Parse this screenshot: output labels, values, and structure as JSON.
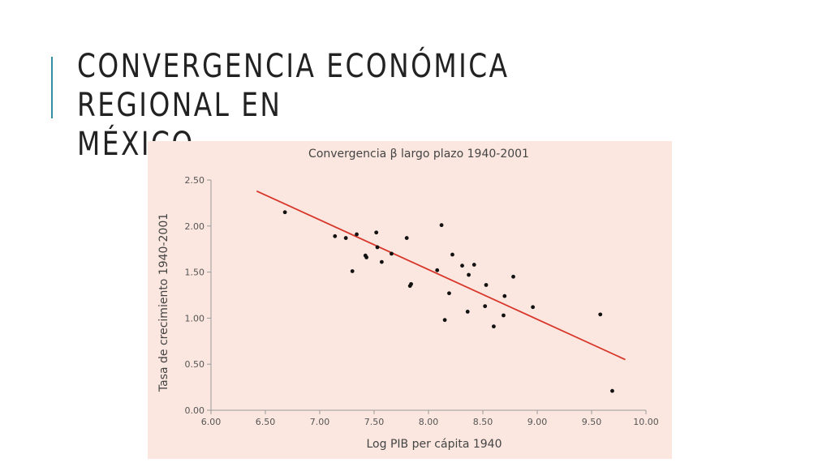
{
  "slide": {
    "title_line1": "CONVERGENCIA ECONÓMICA REGIONAL EN",
    "title_line2": "MÉXICO",
    "accent_color": "#2e8fa0"
  },
  "chart_data": {
    "type": "scatter",
    "title": "Convergencia β largo plazo 1940-2001",
    "xlabel": "Log PIB per cápita 1940",
    "ylabel": "Tasa de crecimiento 1940-2001",
    "xlim": [
      6.0,
      10.0
    ],
    "ylim": [
      0.0,
      2.5
    ],
    "x_ticks": [
      "6.00",
      "6.50",
      "7.00",
      "7.50",
      "8.00",
      "8.50",
      "9.00",
      "9.50",
      "10.00"
    ],
    "y_ticks": [
      "0.00",
      "0.50",
      "1.00",
      "1.50",
      "2.00",
      "2.50"
    ],
    "grid": false,
    "legend": "none",
    "background_color": "#fbe7df",
    "point_color": "#111111",
    "trend_color": "#d8362b",
    "points": [
      {
        "x": 6.68,
        "y": 2.15
      },
      {
        "x": 7.14,
        "y": 1.89
      },
      {
        "x": 7.24,
        "y": 1.87
      },
      {
        "x": 7.3,
        "y": 1.51
      },
      {
        "x": 7.34,
        "y": 1.91
      },
      {
        "x": 7.42,
        "y": 1.68
      },
      {
        "x": 7.43,
        "y": 1.66
      },
      {
        "x": 7.52,
        "y": 1.93
      },
      {
        "x": 7.53,
        "y": 1.77
      },
      {
        "x": 7.57,
        "y": 1.61
      },
      {
        "x": 7.66,
        "y": 1.7
      },
      {
        "x": 7.8,
        "y": 1.87
      },
      {
        "x": 7.83,
        "y": 1.35
      },
      {
        "x": 7.84,
        "y": 1.37
      },
      {
        "x": 8.08,
        "y": 1.52
      },
      {
        "x": 8.12,
        "y": 2.01
      },
      {
        "x": 8.15,
        "y": 0.98
      },
      {
        "x": 8.19,
        "y": 1.27
      },
      {
        "x": 8.22,
        "y": 1.69
      },
      {
        "x": 8.31,
        "y": 1.57
      },
      {
        "x": 8.36,
        "y": 1.07
      },
      {
        "x": 8.37,
        "y": 1.47
      },
      {
        "x": 8.42,
        "y": 1.58
      },
      {
        "x": 8.52,
        "y": 1.13
      },
      {
        "x": 8.53,
        "y": 1.36
      },
      {
        "x": 8.6,
        "y": 0.91
      },
      {
        "x": 8.69,
        "y": 1.03
      },
      {
        "x": 8.7,
        "y": 1.24
      },
      {
        "x": 8.78,
        "y": 1.45
      },
      {
        "x": 8.96,
        "y": 1.12
      },
      {
        "x": 9.58,
        "y": 1.04
      },
      {
        "x": 9.69,
        "y": 0.21
      }
    ],
    "trend_line": {
      "x": [
        6.42,
        9.81
      ],
      "y": [
        2.38,
        0.55
      ]
    }
  }
}
